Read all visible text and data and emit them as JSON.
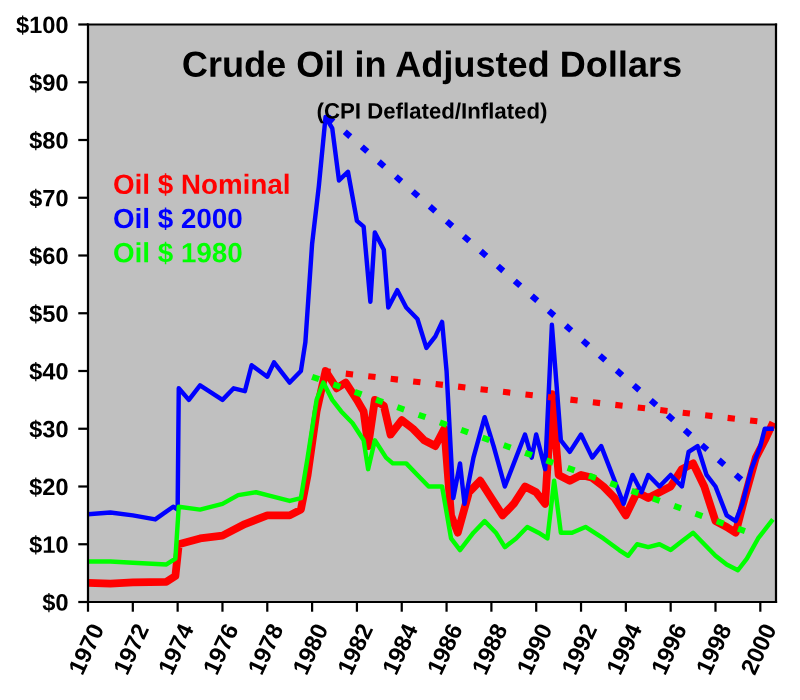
{
  "chart_data": {
    "type": "line",
    "title": "Crude Oil in Adjusted Dollars",
    "subtitle": "(CPI Deflated/Inflated)",
    "legend": "left",
    "grid": false,
    "line_style": "solid",
    "marker": "none",
    "xlim": [
      1970,
      2000.7
    ],
    "xticks": [
      1970,
      1972,
      1974,
      1976,
      1978,
      1980,
      1982,
      1984,
      1986,
      1988,
      1990,
      1992,
      1994,
      1996,
      1998,
      2000
    ],
    "ylim": [
      0,
      100
    ],
    "yticks": [
      {
        "value": 0,
        "label": "$0"
      },
      {
        "value": 10,
        "label": "$10"
      },
      {
        "value": 20,
        "label": "$20"
      },
      {
        "value": 30,
        "label": "$30"
      },
      {
        "value": 40,
        "label": "$40"
      },
      {
        "value": 50,
        "label": "$50"
      },
      {
        "value": 60,
        "label": "$60"
      },
      {
        "value": 70,
        "label": "$70"
      },
      {
        "value": 80,
        "label": "$80"
      },
      {
        "value": 90,
        "label": "$90"
      },
      {
        "value": 100,
        "label": "$100"
      }
    ],
    "series": [
      {
        "name": "Oil $ Nominal",
        "color": "#ff0000",
        "x": [
          1970,
          1971,
          1972,
          1973.5,
          1973.9,
          1974.05,
          1975,
          1976,
          1977,
          1978,
          1979,
          1979.5,
          1979.8,
          1980.2,
          1980.6,
          1981.1,
          1981.5,
          1982,
          1982.3,
          1982.5,
          1982.8,
          1983.2,
          1983.5,
          1984,
          1984.5,
          1985,
          1985.5,
          1985.9,
          1986.2,
          1986.5,
          1987,
          1987.5,
          1988,
          1988.5,
          1989,
          1989.5,
          1990,
          1990.4,
          1990.7,
          1991,
          1991.5,
          1992,
          1992.5,
          1993,
          1993.5,
          1994,
          1994.5,
          1995,
          1995.5,
          1996,
          1996.5,
          1997,
          1997.5,
          1998,
          1998.5,
          1998.9,
          1999.3,
          1999.8,
          2000.2,
          2000.5
        ],
        "values": [
          3.3,
          3.2,
          3.4,
          3.5,
          4.5,
          10,
          11,
          11.5,
          13.5,
          15,
          15,
          16,
          22,
          33,
          40,
          37,
          38,
          35,
          33,
          27,
          35,
          34,
          29,
          31.5,
          30,
          28,
          27,
          30,
          15,
          12,
          19,
          21,
          18,
          15,
          17,
          20,
          19,
          17,
          36,
          22,
          21,
          22,
          21.5,
          20,
          18,
          15,
          19,
          18,
          19,
          20,
          23,
          24,
          20,
          14,
          13,
          12,
          18,
          25,
          28,
          30.5
        ]
      },
      {
        "name": "Oil $ 2000",
        "color": "#0000ff",
        "x": [
          1970,
          1971,
          1972,
          1973,
          1973.8,
          1974,
          1974.05,
          1974.5,
          1975,
          1976,
          1976.5,
          1977,
          1977.3,
          1978,
          1978.3,
          1979,
          1979.5,
          1979.7,
          1980,
          1980.3,
          1980.6,
          1980.9,
          1981.2,
          1981.6,
          1982,
          1982.3,
          1982.6,
          1982.8,
          1983.2,
          1983.4,
          1983.8,
          1984.2,
          1984.7,
          1985.1,
          1985.5,
          1985.8,
          1986,
          1986.3,
          1986.6,
          1986.8,
          1987.2,
          1987.7,
          1988.1,
          1988.6,
          1989.1,
          1989.5,
          1989.8,
          1990,
          1990.4,
          1990.7,
          1990.9,
          1991.1,
          1991.5,
          1992,
          1992.5,
          1992.9,
          1993.4,
          1993.9,
          1994.3,
          1994.7,
          1995,
          1995.5,
          1996,
          1996.5,
          1996.8,
          1997.2,
          1997.6,
          1998,
          1998.5,
          1998.9,
          1999.2,
          1999.6,
          2000,
          2000.2,
          2000.5
        ],
        "values": [
          15.2,
          15.5,
          15,
          14.3,
          16.5,
          16,
          37,
          35,
          37.5,
          35,
          37,
          36.5,
          41,
          39,
          41.5,
          38,
          40,
          45,
          62,
          72,
          84,
          82,
          73,
          74.5,
          66,
          65,
          52,
          64,
          61,
          51,
          54,
          51,
          49,
          44,
          46,
          48.5,
          40,
          18,
          24,
          17,
          25,
          32,
          27,
          20,
          25,
          29,
          25,
          29,
          23,
          48,
          38,
          28,
          26,
          29,
          25,
          27,
          22,
          17,
          22,
          19,
          22,
          20,
          22,
          20,
          26,
          27,
          22,
          20,
          15,
          14,
          17,
          23,
          27,
          30,
          30
        ]
      },
      {
        "name": "Oil $ 1980",
        "color": "#00ff00",
        "x": [
          1970,
          1971,
          1972,
          1973.5,
          1973.9,
          1974.05,
          1975,
          1976,
          1976.7,
          1977.5,
          1978,
          1979,
          1979.5,
          1979.8,
          1980.2,
          1980.5,
          1980.9,
          1981.3,
          1981.8,
          1982.3,
          1982.5,
          1982.8,
          1983.3,
          1983.6,
          1984.2,
          1984.7,
          1985.2,
          1985.8,
          1986.2,
          1986.6,
          1987.2,
          1987.7,
          1988.2,
          1988.6,
          1989.1,
          1989.6,
          1990.1,
          1990.5,
          1990.8,
          1991.1,
          1991.6,
          1992.2,
          1993,
          1993.7,
          1994.1,
          1994.5,
          1995,
          1995.5,
          1996,
          1996.5,
          1997,
          1997.5,
          1998,
          1998.5,
          1999,
          1999.4,
          1999.9,
          2000.3,
          2000.5
        ],
        "values": [
          7,
          7,
          6.8,
          6.5,
          7.5,
          16.5,
          16,
          17,
          18.5,
          19,
          18.5,
          17.5,
          18,
          25,
          35,
          38,
          35,
          33,
          31,
          28,
          23,
          28,
          25,
          24,
          24,
          22,
          20,
          20,
          11,
          9,
          12,
          14,
          12,
          9.5,
          11,
          13,
          12,
          11,
          21,
          12,
          12,
          13,
          11,
          9,
          8,
          10,
          9.5,
          10,
          9,
          10.5,
          12,
          10,
          8,
          6.5,
          5.5,
          7.5,
          11,
          13,
          14
        ]
      },
      {
        "color": "#0000ff",
        "line_style": "dotted",
        "x": [
          1980.7,
          1999.5
        ],
        "values": [
          84,
          20
        ]
      },
      {
        "color": "#ff0000",
        "line_style": "dotted",
        "x": [
          1980.5,
          2000.5
        ],
        "values": [
          40,
          31
        ]
      },
      {
        "color": "#00ff00",
        "line_style": "dotted",
        "x": [
          1980,
          1999.5
        ],
        "values": [
          39,
          12
        ]
      }
    ]
  }
}
